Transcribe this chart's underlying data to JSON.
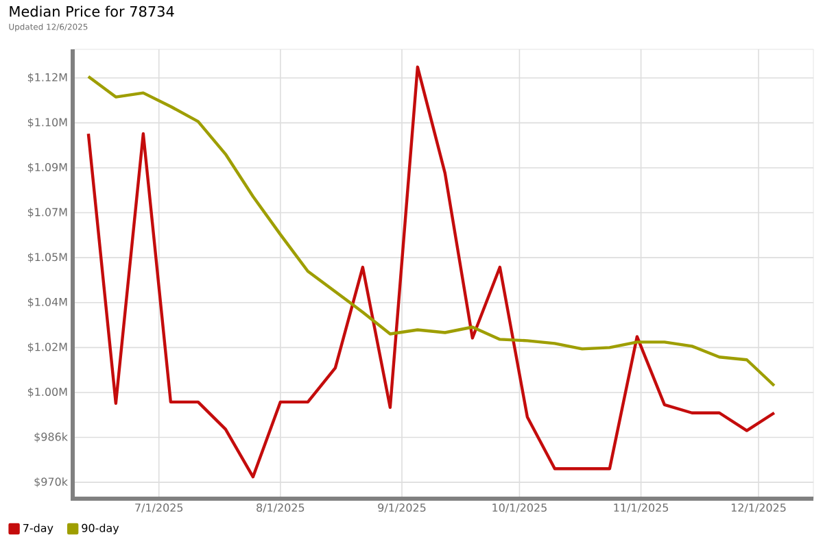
{
  "chart_data": {
    "type": "line",
    "title": "Median Price for 78734",
    "subtitle": "Updated 12/6/2025",
    "x": [
      "2025-06-13",
      "2025-06-20",
      "2025-06-27",
      "2025-07-04",
      "2025-07-11",
      "2025-07-18",
      "2025-07-25",
      "2025-08-01",
      "2025-08-08",
      "2025-08-15",
      "2025-08-22",
      "2025-08-29",
      "2025-09-05",
      "2025-09-12",
      "2025-09-19",
      "2025-09-26",
      "2025-10-03",
      "2025-10-10",
      "2025-10-17",
      "2025-10-24",
      "2025-10-31",
      "2025-11-07",
      "2025-11-14",
      "2025-11-21",
      "2025-11-28",
      "2025-12-05"
    ],
    "series": [
      {
        "name": "7-day",
        "color": "#c40c0c",
        "values": [
          1098000,
          999000,
          1098000,
          999500,
          999500,
          989500,
          972000,
          999500,
          999500,
          1012000,
          1049000,
          997500,
          1122500,
          1083500,
          1023000,
          1049000,
          994000,
          975000,
          975000,
          975000,
          1023500,
          998500,
          995500,
          995500,
          989000,
          995500
        ]
      },
      {
        "name": "90-day",
        "color": "#9e9e00",
        "values": [
          1119000,
          1111500,
          1113000,
          1108000,
          1102500,
          1090500,
          1075000,
          1061000,
          1047500,
          1040000,
          1032500,
          1024500,
          1026000,
          1025000,
          1027000,
          1022500,
          1022000,
          1021000,
          1019000,
          1019500,
          1021500,
          1021500,
          1020000,
          1016000,
          1015000,
          1005500
        ]
      }
    ],
    "xlim": [
      "2025-06-09",
      "2025-12-15"
    ],
    "xticks": [
      {
        "value": "2025-07-01",
        "label": "7/1/2025"
      },
      {
        "value": "2025-08-01",
        "label": "8/1/2025"
      },
      {
        "value": "2025-09-01",
        "label": "9/1/2025"
      },
      {
        "value": "2025-10-01",
        "label": "10/1/2025"
      },
      {
        "value": "2025-11-01",
        "label": "11/1/2025"
      },
      {
        "value": "2025-12-01",
        "label": "12/1/2025"
      }
    ],
    "ylim": [
      964000,
      1129000
    ],
    "yticks": [
      {
        "value": 970000,
        "label": "$970k"
      },
      {
        "value": 986500,
        "label": "$986k"
      },
      {
        "value": 1003000,
        "label": "$1.00M"
      },
      {
        "value": 1019500,
        "label": "$1.02M"
      },
      {
        "value": 1036000,
        "label": "$1.04M"
      },
      {
        "value": 1052500,
        "label": "$1.05M"
      },
      {
        "value": 1069000,
        "label": "$1.07M"
      },
      {
        "value": 1085500,
        "label": "$1.09M"
      },
      {
        "value": 1102000,
        "label": "$1.10M"
      },
      {
        "value": 1118500,
        "label": "$1.12M"
      }
    ],
    "grid": true,
    "legend": "bottom left",
    "marker": "none",
    "line_style": "solid"
  }
}
